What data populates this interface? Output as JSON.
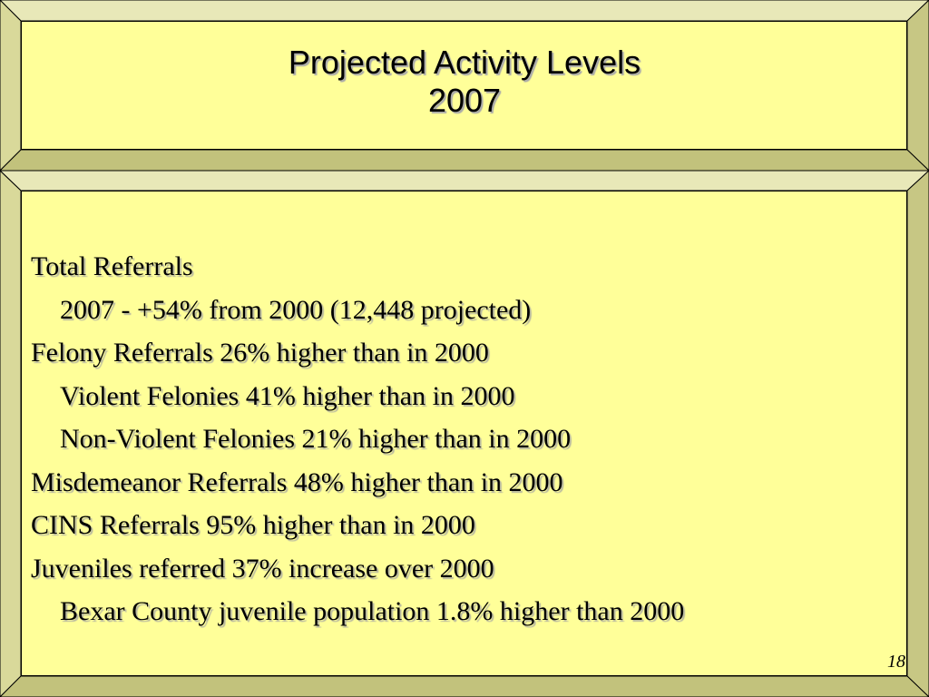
{
  "title": {
    "line1": "Projected Activity Levels",
    "line2": "2007"
  },
  "lines": [
    {
      "label": "Total Referrals",
      "text": ""
    },
    {
      "label": "",
      "text": "2007 - +54% from 2000 (12,448 projected)"
    },
    {
      "label": "Felony Referrals",
      "text": " 26% higher than in 2000"
    },
    {
      "label": "",
      "text": "Violent Felonies 41% higher than in 2000"
    },
    {
      "label": "",
      "text": "Non-Violent Felonies 21% higher than in 2000"
    },
    {
      "label": "Misdemeanor Referrals",
      "text": " 48% higher than in 2000"
    },
    {
      "label": "CINS Referrals",
      "text": " 95% higher than in 2000"
    },
    {
      "label": "Juveniles",
      "text": " referred 37% increase over 2000"
    },
    {
      "label": "",
      "text": "Bexar County juvenile population 1.8% higher than  2000"
    }
  ],
  "page_number": "18",
  "colors": {
    "background": "#ffff99",
    "bevel_light": "#e6e6b0",
    "bevel_dark": "#b3b37a"
  }
}
